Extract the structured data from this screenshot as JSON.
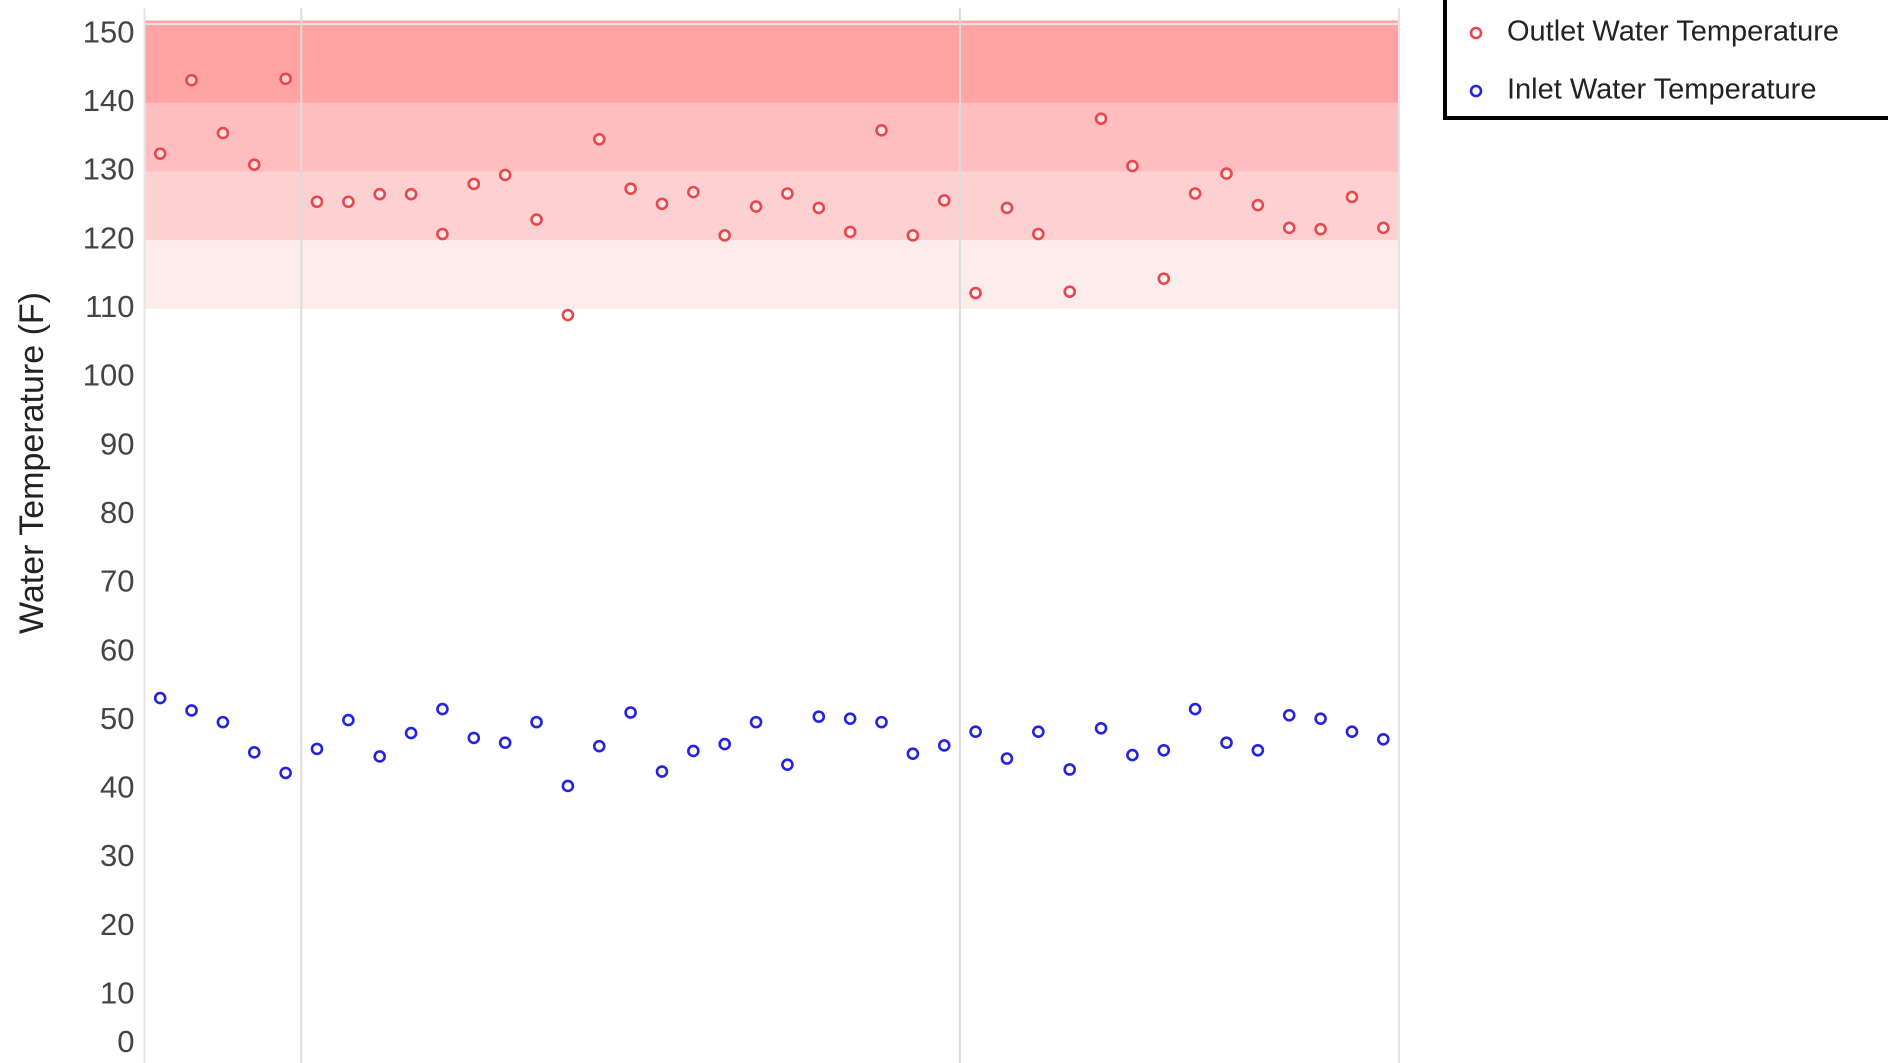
{
  "chart_data": {
    "type": "scatter",
    "y_label": "Water Temperature (F)",
    "x": [
      1,
      2,
      3,
      4,
      5,
      6,
      7,
      8,
      9,
      10,
      11,
      12,
      13,
      14,
      15,
      16,
      17,
      18,
      19,
      20,
      21,
      22,
      23,
      24,
      25,
      26,
      27,
      28,
      29,
      30,
      31,
      32,
      33,
      34,
      35,
      36,
      37,
      38,
      39,
      40
    ],
    "xlim": [
      0.5,
      40.5
    ],
    "xticks": [
      5.5,
      26.5
    ],
    "ylim": [
      0,
      152
    ],
    "yticks": [
      0,
      10,
      20,
      30,
      40,
      50,
      60,
      70,
      80,
      90,
      100,
      110,
      120,
      130,
      140,
      150
    ],
    "grid": true,
    "legend": "upper right",
    "bands": [
      {
        "from": 110,
        "to": 120,
        "color": "#fdecec"
      },
      {
        "from": 120,
        "to": 130,
        "color": "#fdd0d1"
      },
      {
        "from": 130,
        "to": 140,
        "color": "#ffbfc0"
      },
      {
        "from": 140,
        "to": 152,
        "color": "#ffa3a4"
      }
    ],
    "series": [
      {
        "name": "Outlet Water Temperature",
        "color": "#e8474c",
        "values": [
          132.6,
          143.3,
          135.6,
          131,
          143.5,
          125.6,
          125.6,
          126.7,
          126.7,
          120.9,
          128.2,
          129.5,
          123,
          109.1,
          134.7,
          127.5,
          125.3,
          127,
          120.7,
          124.9,
          126.8,
          124.7,
          121.2,
          136,
          120.7,
          125.8,
          112.3,
          124.7,
          120.9,
          112.5,
          137.7,
          130.8,
          114.4,
          126.8,
          129.7,
          125.1,
          121.8,
          121.6,
          126.3,
          121.8
        ]
      },
      {
        "name": "Inlet Water Temperature",
        "color": "#2323e0",
        "values": [
          53.3,
          51.5,
          49.8,
          45.4,
          42.4,
          45.9,
          50.1,
          44.8,
          48.2,
          51.7,
          47.5,
          46.8,
          49.8,
          40.5,
          46.3,
          51.2,
          42.6,
          45.6,
          46.6,
          49.8,
          43.6,
          50.6,
          50.3,
          49.8,
          45.2,
          46.4,
          48.4,
          44.5,
          48.4,
          42.9,
          48.9,
          45,
          45.7,
          51.7,
          46.8,
          45.7,
          50.8,
          50.3,
          48.4,
          47.3
        ]
      }
    ]
  }
}
